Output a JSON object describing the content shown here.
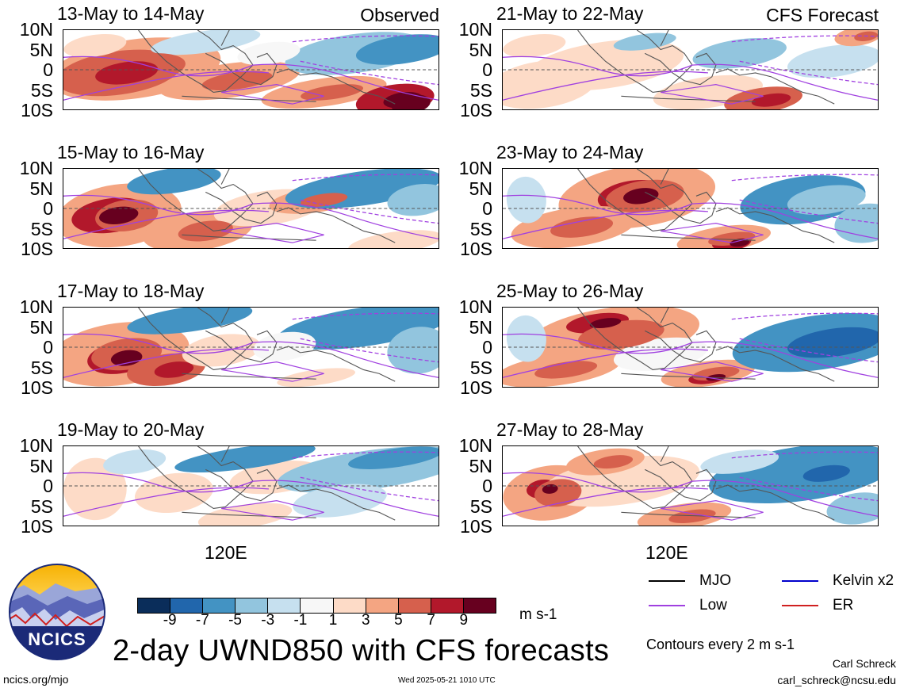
{
  "chart_data": {
    "type": "heatmap",
    "title": "2-day UWND850 with CFS forecasts",
    "colorbar": {
      "unit": "m s-1",
      "ticks": [
        "-9",
        "-7",
        "-5",
        "-3",
        "-1",
        "1",
        "3",
        "5",
        "7",
        "9"
      ],
      "colors": [
        "#0a2d5a",
        "#2166ac",
        "#4393c3",
        "#92c5de",
        "#c6e0ef",
        "#f7f7f7",
        "#fddbc7",
        "#f4a582",
        "#d6604d",
        "#b2182b",
        "#67001f"
      ]
    },
    "y_ticks": [
      "10N",
      "5N",
      "0",
      "5S",
      "10S"
    ],
    "x_ticks": [
      "120E"
    ],
    "panels": [
      {
        "title": "13-May to 14-May",
        "tag": "Observed",
        "col": 0,
        "row": 0
      },
      {
        "title": "15-May to 16-May",
        "tag": "",
        "col": 0,
        "row": 1
      },
      {
        "title": "17-May to 18-May",
        "tag": "",
        "col": 0,
        "row": 2
      },
      {
        "title": "19-May to 20-May",
        "tag": "",
        "col": 0,
        "row": 3
      },
      {
        "title": "21-May to 22-May",
        "tag": "CFS Forecast",
        "col": 1,
        "row": 0
      },
      {
        "title": "23-May to 24-May",
        "tag": "",
        "col": 1,
        "row": 1
      },
      {
        "title": "25-May to 26-May",
        "tag": "",
        "col": 1,
        "row": 2
      },
      {
        "title": "27-May to 28-May",
        "tag": "",
        "col": 1,
        "row": 3
      }
    ],
    "legend": [
      {
        "label": "MJO",
        "color": "#000000"
      },
      {
        "label": "Kelvin x2",
        "color": "#0000cc"
      },
      {
        "label": "Low",
        "color": "#a040e0"
      },
      {
        "label": "ER",
        "color": "#d02020"
      }
    ],
    "contour_note": "Contours every 2 m s-1"
  },
  "footer": {
    "left": "ncics.org/mjo",
    "center": "Wed 2025-05-21 1010 UTC",
    "author": "Carl Schreck",
    "email": "carl_schreck@ncsu.edu",
    "logo_text": "NCICS"
  }
}
